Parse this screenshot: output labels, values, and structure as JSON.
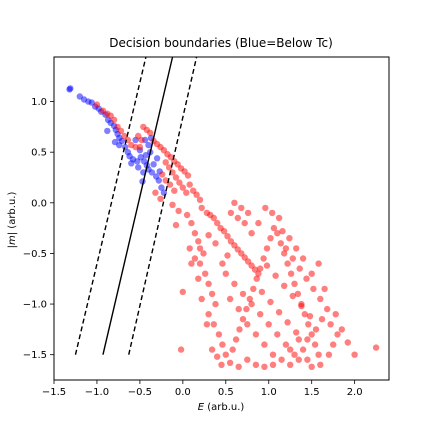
{
  "chart_data": {
    "type": "scatter",
    "title": "Decision boundaries (Blue=Below Tc)",
    "xlabel": "E (arb.u.)",
    "xlabel_parts": {
      "var": "E",
      "unit": " (arb.u.)"
    },
    "ylabel": "|m| (arb.u.)",
    "ylabel_parts": {
      "var": "|m|",
      "unit": " (arb.u.)"
    },
    "xlim": [
      -1.5,
      2.4
    ],
    "ylim": [
      -1.75,
      1.44
    ],
    "xticks": [
      -1.5,
      -1.0,
      -0.5,
      0.0,
      0.5,
      1.0,
      1.5,
      2.0
    ],
    "xtick_labels": [
      "−1.5",
      "−1.0",
      "−0.5",
      "0.0",
      "0.5",
      "1.0",
      "1.5",
      "2.0"
    ],
    "yticks": [
      -1.5,
      -1.0,
      -0.5,
      0.0,
      0.5,
      1.0
    ],
    "ytick_labels": [
      "−1.5",
      "−1.0",
      "−0.5",
      "0.0",
      "0.5",
      "1.0"
    ],
    "grid": false,
    "colors": {
      "below": "#0000ff",
      "above": "#ff0000",
      "boundary": "#000000"
    },
    "point_alpha": 0.5,
    "lines": [
      {
        "style": "solid",
        "x": [
          -0.93,
          -0.12
        ],
        "y": [
          -1.5,
          1.44
        ]
      },
      {
        "style": "dashed",
        "x": [
          -1.25,
          -0.43
        ],
        "y": [
          -1.5,
          1.44
        ]
      },
      {
        "style": "dashed",
        "x": [
          -0.63,
          0.16
        ],
        "y": [
          -1.5,
          1.44
        ]
      }
    ],
    "series": [
      {
        "class": "below",
        "points": [
          [
            -1.32,
            1.12
          ],
          [
            -1.31,
            1.13
          ],
          [
            -1.2,
            1.05
          ],
          [
            -1.15,
            1.02
          ],
          [
            -1.1,
            1.0
          ],
          [
            -1.06,
            0.99
          ],
          [
            -1.02,
            0.95
          ],
          [
            -0.98,
            0.93
          ],
          [
            -0.95,
            0.9
          ],
          [
            -0.9,
            0.87
          ],
          [
            -0.87,
            0.82
          ],
          [
            -0.84,
            0.79
          ],
          [
            -0.8,
            0.76
          ],
          [
            -0.78,
            0.72
          ],
          [
            -0.76,
            0.68
          ],
          [
            -0.74,
            0.64
          ],
          [
            -0.71,
            0.61
          ],
          [
            -0.79,
            0.6
          ],
          [
            -0.74,
            0.57
          ],
          [
            -0.67,
            0.55
          ],
          [
            -0.64,
            0.5
          ],
          [
            -0.62,
            0.46
          ],
          [
            -0.58,
            0.43
          ],
          [
            -0.53,
            0.41
          ],
          [
            -0.49,
            0.45
          ],
          [
            -0.45,
            0.41
          ],
          [
            -0.42,
            0.37
          ],
          [
            -0.4,
            0.33
          ],
          [
            -0.36,
            0.3
          ],
          [
            -0.31,
            0.26
          ],
          [
            -0.28,
            0.22
          ],
          [
            -0.25,
            0.15
          ],
          [
            -0.22,
            0.1
          ],
          [
            -0.47,
            0.21
          ],
          [
            -0.44,
            0.62
          ],
          [
            -0.4,
            0.57
          ],
          [
            -0.37,
            0.64
          ],
          [
            -0.88,
            0.71
          ],
          [
            -0.52,
            0.35
          ],
          [
            -0.5,
            0.52
          ],
          [
            -0.43,
            0.47
          ],
          [
            -0.34,
            0.38
          ],
          [
            -0.55,
            0.62
          ],
          [
            -0.27,
            0.31
          ],
          [
            -0.6,
            0.39
          ],
          [
            -0.38,
            0.5
          ],
          [
            -0.46,
            0.3
          ],
          [
            -0.3,
            0.44
          ]
        ]
      },
      {
        "class": "above",
        "points": [
          [
            -1.0,
            0.97
          ],
          [
            -0.93,
            0.91
          ],
          [
            -0.88,
            0.88
          ],
          [
            -0.84,
            0.86
          ],
          [
            -0.8,
            0.82
          ],
          [
            -0.76,
            0.75
          ],
          [
            -0.72,
            0.71
          ],
          [
            -0.68,
            0.66
          ],
          [
            -0.64,
            0.62
          ],
          [
            -0.6,
            0.57
          ],
          [
            -0.55,
            0.55
          ],
          [
            -0.5,
            0.55
          ],
          [
            -0.46,
            0.75
          ],
          [
            -0.42,
            0.72
          ],
          [
            -0.38,
            0.69
          ],
          [
            -0.52,
            0.66
          ],
          [
            -0.48,
            0.62
          ],
          [
            -0.34,
            0.61
          ],
          [
            -0.3,
            0.58
          ],
          [
            -0.26,
            0.55
          ],
          [
            -0.22,
            0.52
          ],
          [
            -0.18,
            0.48
          ],
          [
            -0.14,
            0.45
          ],
          [
            -0.1,
            0.41
          ],
          [
            -0.06,
            0.38
          ],
          [
            -0.02,
            0.34
          ],
          [
            0.02,
            0.31
          ],
          [
            0.06,
            0.27
          ],
          [
            -0.2,
            0.4
          ],
          [
            -0.16,
            0.35
          ],
          [
            -0.12,
            0.3
          ],
          [
            -0.08,
            0.25
          ],
          [
            -0.04,
            0.2
          ],
          [
            0.0,
            0.15
          ],
          [
            0.04,
            0.1
          ],
          [
            -0.24,
            0.28
          ],
          [
            -0.2,
            0.22
          ],
          [
            -0.15,
            0.18
          ],
          [
            -0.1,
            0.12
          ],
          [
            0.08,
            0.18
          ],
          [
            0.12,
            0.12
          ],
          [
            0.16,
            0.08
          ],
          [
            0.2,
            0.03
          ],
          [
            0.22,
            -0.05
          ],
          [
            0.28,
            -0.1
          ],
          [
            0.32,
            -0.12
          ],
          [
            0.36,
            -0.15
          ],
          [
            0.4,
            -0.2
          ],
          [
            0.44,
            -0.25
          ],
          [
            0.48,
            -0.28
          ],
          [
            0.52,
            -0.33
          ],
          [
            0.56,
            -0.38
          ],
          [
            0.6,
            -0.42
          ],
          [
            0.64,
            -0.46
          ],
          [
            0.68,
            -0.5
          ],
          [
            0.72,
            -0.54
          ],
          [
            0.76,
            -0.58
          ],
          [
            0.8,
            -0.62
          ],
          [
            0.84,
            -0.66
          ],
          [
            0.88,
            -0.7
          ],
          [
            -0.32,
            0.1
          ],
          [
            -0.26,
            0.04
          ],
          [
            -0.12,
            -0.02
          ],
          [
            -0.05,
            -0.08
          ],
          [
            0.05,
            -0.12
          ],
          [
            0.1,
            -0.2
          ],
          [
            0.14,
            -0.3
          ],
          [
            0.18,
            -0.38
          ],
          [
            0.08,
            -0.45
          ],
          [
            0.14,
            -0.55
          ],
          [
            0.2,
            -0.6
          ],
          [
            0.26,
            -0.7
          ],
          [
            0.3,
            -0.8
          ],
          [
            0.34,
            -0.9
          ],
          [
            0.38,
            -1.0
          ],
          [
            0.3,
            -1.1
          ],
          [
            0.36,
            -1.2
          ],
          [
            0.42,
            -1.3
          ],
          [
            0.46,
            -1.4
          ],
          [
            0.4,
            -1.52
          ],
          [
            0.5,
            -1.5
          ],
          [
            0.58,
            -1.45
          ],
          [
            0.62,
            -1.35
          ],
          [
            0.66,
            -1.25
          ],
          [
            0.7,
            -1.15
          ],
          [
            0.74,
            -1.05
          ],
          [
            0.78,
            -0.95
          ],
          [
            0.82,
            -0.85
          ],
          [
            0.86,
            -0.75
          ],
          [
            0.9,
            -0.65
          ],
          [
            0.94,
            -0.55
          ],
          [
            0.98,
            -0.45
          ],
          [
            1.02,
            -0.35
          ],
          [
            1.06,
            -0.25
          ],
          [
            1.1,
            -0.3
          ],
          [
            1.14,
            -0.4
          ],
          [
            1.18,
            -0.5
          ],
          [
            1.22,
            -0.6
          ],
          [
            1.26,
            -0.7
          ],
          [
            1.3,
            -0.8
          ],
          [
            1.34,
            -0.9
          ],
          [
            1.38,
            -1.0
          ],
          [
            1.42,
            -1.1
          ],
          [
            1.46,
            -1.2
          ],
          [
            1.5,
            -1.3
          ],
          [
            1.54,
            -1.4
          ],
          [
            1.58,
            -1.5
          ],
          [
            1.4,
            -1.45
          ],
          [
            1.3,
            -1.5
          ],
          [
            1.2,
            -1.4
          ],
          [
            1.1,
            -1.3
          ],
          [
            1.0,
            -1.2
          ],
          [
            0.9,
            -1.1
          ],
          [
            0.8,
            -1.0
          ],
          [
            0.7,
            -0.9
          ],
          [
            0.6,
            -0.8
          ],
          [
            0.5,
            -0.7
          ],
          [
            0.55,
            -0.95
          ],
          [
            0.65,
            -1.05
          ],
          [
            0.75,
            -1.2
          ],
          [
            0.85,
            -1.3
          ],
          [
            0.95,
            -1.4
          ],
          [
            1.05,
            -1.5
          ],
          [
            1.15,
            -1.55
          ],
          [
            1.25,
            -1.6
          ],
          [
            1.35,
            -1.55
          ],
          [
            1.45,
            -1.35
          ],
          [
            1.55,
            -1.25
          ],
          [
            1.62,
            -1.15
          ],
          [
            1.68,
            -1.05
          ],
          [
            1.6,
            -0.95
          ],
          [
            1.52,
            -0.85
          ],
          [
            1.44,
            -0.75
          ],
          [
            1.36,
            -0.65
          ],
          [
            1.28,
            -0.55
          ],
          [
            1.2,
            -0.45
          ],
          [
            1.12,
            -0.15
          ],
          [
            1.04,
            -0.1
          ],
          [
            0.96,
            -0.05
          ],
          [
            0.88,
            -0.2
          ],
          [
            0.8,
            -0.3
          ],
          [
            0.72,
            -0.2
          ],
          [
            0.64,
            -0.15
          ],
          [
            0.56,
            -0.1
          ],
          [
            0.6,
            0.0
          ],
          [
            0.68,
            -0.05
          ],
          [
            0.76,
            -0.1
          ],
          [
            0.52,
            -0.52
          ],
          [
            0.46,
            -0.6
          ],
          [
            0.38,
            -0.4
          ],
          [
            0.3,
            -0.32
          ],
          [
            0.24,
            -0.5
          ],
          [
            0.18,
            -0.75
          ],
          [
            0.22,
            -0.95
          ],
          [
            0.28,
            -1.2
          ],
          [
            0.34,
            -1.45
          ],
          [
            0.45,
            -1.6
          ],
          [
            0.55,
            -1.58
          ],
          [
            0.65,
            -1.62
          ],
          [
            0.75,
            -1.55
          ],
          [
            0.85,
            -1.6
          ],
          [
            0.95,
            -1.62
          ],
          [
            1.05,
            -1.6
          ],
          [
            1.25,
            -1.45
          ],
          [
            1.35,
            -1.35
          ],
          [
            1.45,
            -1.55
          ],
          [
            1.5,
            -1.62
          ],
          [
            1.6,
            -1.6
          ],
          [
            1.7,
            -1.5
          ],
          [
            1.75,
            -1.4
          ],
          [
            1.8,
            -1.3
          ],
          [
            1.72,
            -1.2
          ],
          [
            1.78,
            -1.1
          ],
          [
            1.85,
            -1.25
          ],
          [
            1.92,
            -1.38
          ],
          [
            2.0,
            -1.5
          ],
          [
            2.25,
            -1.43
          ],
          [
            1.65,
            -0.85
          ],
          [
            1.5,
            -0.7
          ],
          [
            1.58,
            -0.6
          ],
          [
            1.4,
            -0.55
          ],
          [
            1.32,
            -0.45
          ],
          [
            1.24,
            -0.35
          ],
          [
            1.16,
            -0.28
          ],
          [
            0.98,
            -0.62
          ],
          [
            1.08,
            -0.72
          ],
          [
            1.18,
            -0.82
          ],
          [
            1.28,
            -0.92
          ],
          [
            1.38,
            -1.02
          ],
          [
            1.48,
            -1.12
          ],
          [
            0.92,
            -0.88
          ],
          [
            1.02,
            -0.98
          ],
          [
            1.12,
            -1.08
          ],
          [
            1.22,
            -1.18
          ],
          [
            1.32,
            -1.28
          ],
          [
            -0.02,
            -1.45
          ],
          [
            0.0,
            -0.88
          ],
          [
            -0.08,
            -0.22
          ],
          [
            0.2,
            -0.45
          ],
          [
            0.1,
            -0.6
          ]
        ]
      }
    ]
  }
}
